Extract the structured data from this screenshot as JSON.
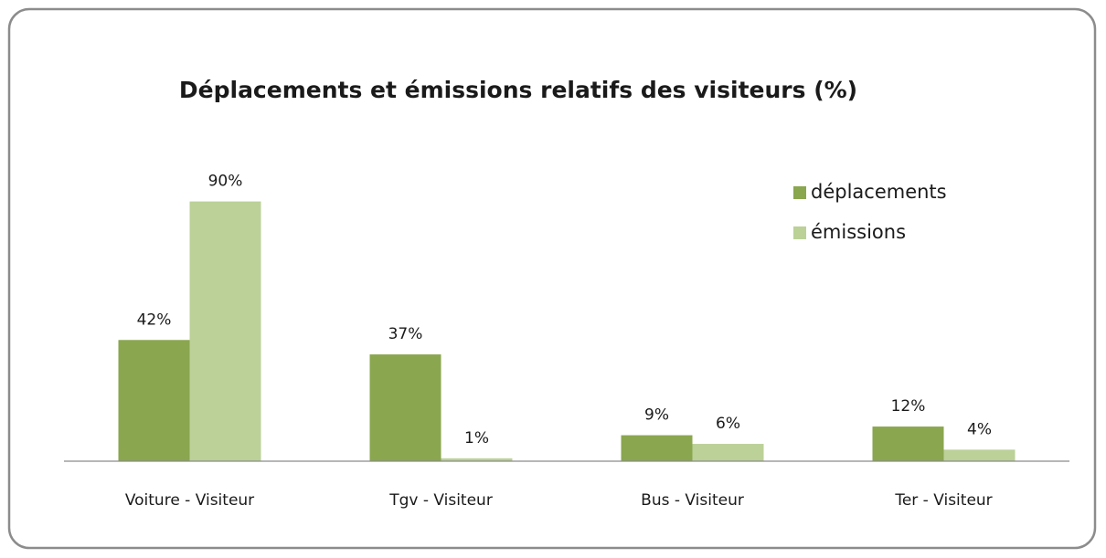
{
  "chart_data": {
    "type": "bar",
    "title": "Déplacements et émissions relatifs des visiteurs (%)",
    "categories": [
      "Voiture - Visiteur",
      "Tgv - Visiteur",
      "Bus - Visiteur",
      "Ter - Visiteur"
    ],
    "series": [
      {
        "name": "déplacements",
        "color": "#8aa64f",
        "values": [
          42,
          37,
          9,
          12
        ],
        "value_labels": [
          "42%",
          "37%",
          "9%",
          "12%"
        ]
      },
      {
        "name": "émissions",
        "color": "#bbd198",
        "values": [
          90,
          1,
          6,
          4
        ],
        "value_labels": [
          "90%",
          "1%",
          "6%",
          "4%"
        ]
      }
    ],
    "ylim": [
      0,
      100
    ],
    "legend": "top-right"
  }
}
